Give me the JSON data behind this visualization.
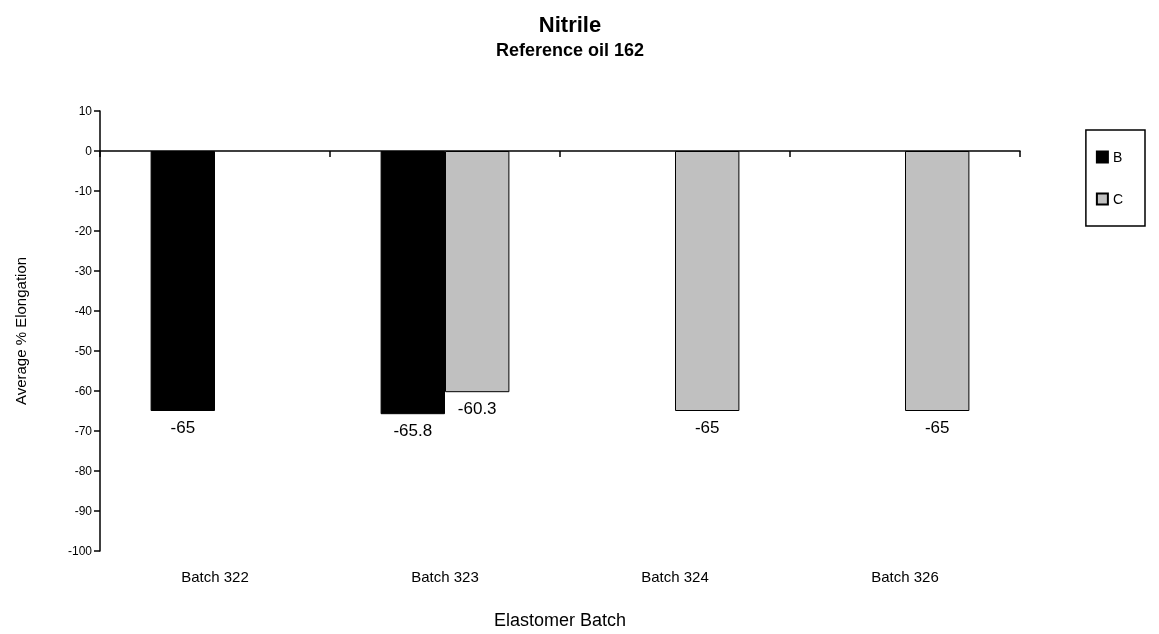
{
  "chart_data": {
    "type": "bar",
    "title": "Nitrile",
    "subtitle": "Reference oil 162",
    "xlabel": "Elastomer Batch",
    "ylabel": "Average % Elongation",
    "categories": [
      "Batch 322",
      "Batch 323",
      "Batch 324",
      "Batch 326"
    ],
    "series": [
      {
        "name": "B",
        "color": "#000000",
        "values": [
          -65,
          -65.8,
          null,
          null
        ]
      },
      {
        "name": "C",
        "color": "#c0c0c0",
        "values": [
          null,
          -60.3,
          -65,
          -65
        ]
      }
    ],
    "ylim": [
      -100,
      10
    ],
    "yticks": [
      -100,
      -90,
      -80,
      -70,
      -60,
      -50,
      -40,
      -30,
      -20,
      -10,
      0,
      10
    ],
    "legend": "right",
    "data_labels": true
  }
}
